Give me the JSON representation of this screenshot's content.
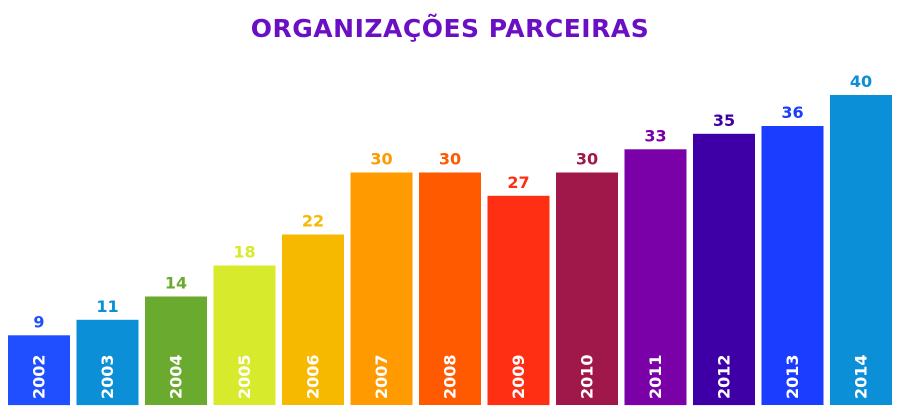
{
  "chart_data": {
    "type": "bar",
    "title": "ORGANIZAÇÕES PARCEIRAS",
    "categories": [
      "2002",
      "2003",
      "2004",
      "2005",
      "2006",
      "2007",
      "2008",
      "2009",
      "2010",
      "2011",
      "2012",
      "2013",
      "2014"
    ],
    "values": [
      9,
      11,
      14,
      18,
      22,
      30,
      30,
      27,
      30,
      33,
      35,
      36,
      40
    ],
    "colors": [
      "#1f4fff",
      "#0b8fd6",
      "#6aaa2e",
      "#d7ea2b",
      "#f7b800",
      "#ff9a00",
      "#ff5a00",
      "#ff2f14",
      "#a0184a",
      "#7a00a8",
      "#3e00a6",
      "#1a3dff",
      "#0b8fd6"
    ],
    "title_color": "#6b0fc4",
    "xlabel": "",
    "ylabel": "",
    "ylim": [
      0,
      40
    ],
    "grid": false,
    "legend": "none",
    "category_labels_position": "inside-bar-bottom-rotated",
    "value_labels_position": "above-bar"
  }
}
